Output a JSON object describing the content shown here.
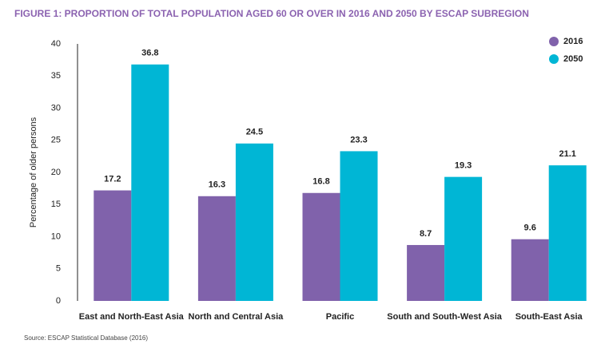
{
  "chart_data": {
    "type": "bar",
    "title": "FIGURE 1: PROPORTION OF TOTAL POPULATION AGED 60 OR OVER IN 2016 AND 2050 BY ESCAP SUBREGION",
    "y_label": "Percentage of older persons",
    "source": "Source: ESCAP Statistical Database (2016)",
    "categories": [
      "East and North-East Asia",
      "North and Central Asia",
      "Pacific",
      "South and South-West Asia",
      "South-East Asia"
    ],
    "series": [
      {
        "name": "2016",
        "color": "#8062ab",
        "values": [
          17.2,
          16.3,
          16.8,
          8.7,
          9.6
        ]
      },
      {
        "name": "2050",
        "color": "#00b6d5",
        "values": [
          36.8,
          24.5,
          23.3,
          19.3,
          21.1
        ]
      }
    ],
    "ylim": [
      0,
      40
    ],
    "yticks": [
      0,
      5,
      10,
      15,
      20,
      25,
      30,
      35,
      40
    ],
    "grid": false,
    "legend": "top-right"
  }
}
